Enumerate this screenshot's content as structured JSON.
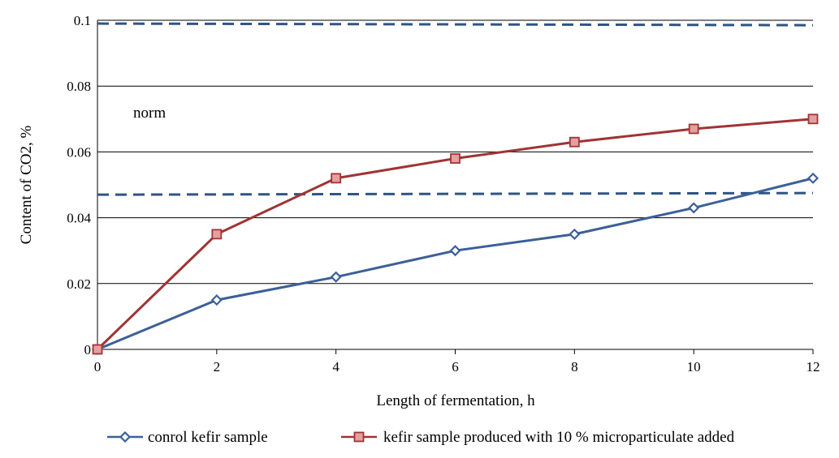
{
  "chart_data": {
    "type": "line",
    "xlabel": "Length of fermentation, h",
    "ylabel": "Content of CO2, %",
    "xlim": [
      0,
      12
    ],
    "ylim": [
      0,
      0.1
    ],
    "x_ticks": [
      "0",
      "2",
      "4",
      "6",
      "8",
      "10",
      "12"
    ],
    "y_ticks": [
      "0",
      "0.02",
      "0.04",
      "0.06",
      "0.08",
      "0.1"
    ],
    "grid": "horizontal",
    "legend_position": "bottom",
    "x": [
      0,
      2,
      4,
      6,
      8,
      10,
      12
    ],
    "series": [
      {
        "name": "conrol kefir sample",
        "values": [
          0,
          0.015,
          0.022,
          0.03,
          0.035,
          0.043,
          0.052
        ],
        "color": "#3C6098",
        "marker": "diamond"
      },
      {
        "name": "kefir sample produced with 10 % microparticulate added",
        "values": [
          0,
          0.035,
          0.052,
          0.058,
          0.063,
          0.067,
          0.07
        ],
        "color": "#A03434",
        "marker": "square"
      }
    ],
    "reference_lines": [
      {
        "x": [
          0,
          12
        ],
        "y": [
          0.099,
          0.0985
        ],
        "color": "#2E5585",
        "style": "dashed"
      },
      {
        "x": [
          0,
          12
        ],
        "y": [
          0.047,
          0.0475
        ],
        "color": "#2E5585",
        "style": "dashed"
      }
    ],
    "annotations": [
      {
        "text": "norm",
        "x": 0.6,
        "y": 0.0705
      }
    ]
  }
}
